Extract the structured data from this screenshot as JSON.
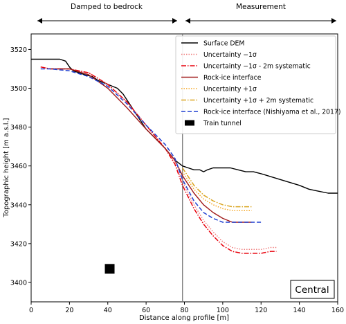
{
  "chart_data": {
    "type": "line",
    "title": "",
    "xlabel": "Distance along profile [m]",
    "ylabel": "Topographic height [m a.s.l.]",
    "xlim": [
      0,
      160
    ],
    "ylim": [
      3390,
      3528
    ],
    "xticks": [
      0,
      20,
      40,
      60,
      80,
      100,
      120,
      140,
      160
    ],
    "yticks": [
      3400,
      3420,
      3440,
      3460,
      3480,
      3500,
      3520
    ],
    "grid": false,
    "legend_position": "top-right",
    "panel_label": "Central",
    "vertical_line_x": 79,
    "top_annotations": [
      {
        "label": "Damped to bedrock",
        "x_start": 0,
        "x_end": 78
      },
      {
        "label": "Measurement",
        "x_start": 80,
        "x_end": 160
      }
    ],
    "series": [
      {
        "name": "Surface DEM",
        "color": "#000000",
        "style": "solid",
        "points": [
          [
            0,
            3515
          ],
          [
            5,
            3515
          ],
          [
            10,
            3515
          ],
          [
            15,
            3515
          ],
          [
            18,
            3514
          ],
          [
            20,
            3511
          ],
          [
            22,
            3509
          ],
          [
            25,
            3508
          ],
          [
            28,
            3507
          ],
          [
            32,
            3506
          ],
          [
            35,
            3504
          ],
          [
            40,
            3502
          ],
          [
            45,
            3500
          ],
          [
            48,
            3497
          ],
          [
            52,
            3491
          ],
          [
            56,
            3485
          ],
          [
            60,
            3479
          ],
          [
            65,
            3474
          ],
          [
            70,
            3469
          ],
          [
            75,
            3463
          ],
          [
            79,
            3460
          ],
          [
            82,
            3459
          ],
          [
            85,
            3458
          ],
          [
            88,
            3458
          ],
          [
            90,
            3457
          ],
          [
            92,
            3458
          ],
          [
            95,
            3459
          ],
          [
            100,
            3459
          ],
          [
            104,
            3459
          ],
          [
            108,
            3458
          ],
          [
            112,
            3457
          ],
          [
            116,
            3457
          ],
          [
            120,
            3456
          ],
          [
            130,
            3453
          ],
          [
            140,
            3450
          ],
          [
            145,
            3448
          ],
          [
            150,
            3447
          ],
          [
            155,
            3446
          ],
          [
            160,
            3446
          ]
        ]
      },
      {
        "name": "Uncertainty −1σ",
        "color": "#f08080",
        "style": "dotted",
        "points": [
          [
            5,
            3511
          ],
          [
            10,
            3510
          ],
          [
            20,
            3510
          ],
          [
            30,
            3508
          ],
          [
            40,
            3502
          ],
          [
            50,
            3493
          ],
          [
            60,
            3481
          ],
          [
            70,
            3469
          ],
          [
            75,
            3462
          ],
          [
            79,
            3452
          ],
          [
            85,
            3440
          ],
          [
            90,
            3432
          ],
          [
            95,
            3426
          ],
          [
            100,
            3421
          ],
          [
            105,
            3418
          ],
          [
            110,
            3417
          ],
          [
            115,
            3417
          ],
          [
            120,
            3417
          ],
          [
            125,
            3418
          ],
          [
            128,
            3418
          ]
        ]
      },
      {
        "name": "Uncertainty −1σ - 2m systematic",
        "color": "#e8000b",
        "style": "dashdot",
        "points": [
          [
            5,
            3511
          ],
          [
            10,
            3510
          ],
          [
            20,
            3510
          ],
          [
            30,
            3508
          ],
          [
            40,
            3502
          ],
          [
            50,
            3493
          ],
          [
            60,
            3481
          ],
          [
            70,
            3469
          ],
          [
            75,
            3461
          ],
          [
            79,
            3450
          ],
          [
            85,
            3438
          ],
          [
            90,
            3430
          ],
          [
            95,
            3424
          ],
          [
            100,
            3419
          ],
          [
            105,
            3416
          ],
          [
            110,
            3415
          ],
          [
            115,
            3415
          ],
          [
            120,
            3415
          ],
          [
            125,
            3416
          ],
          [
            128,
            3416
          ]
        ]
      },
      {
        "name": "Rock-ice interface",
        "color": "#a01a1a",
        "style": "solid",
        "points": [
          [
            10,
            3510
          ],
          [
            20,
            3510
          ],
          [
            30,
            3507
          ],
          [
            40,
            3500
          ],
          [
            50,
            3490
          ],
          [
            60,
            3479
          ],
          [
            70,
            3469
          ],
          [
            75,
            3463
          ],
          [
            79,
            3455
          ],
          [
            85,
            3446
          ],
          [
            90,
            3440
          ],
          [
            95,
            3436
          ],
          [
            100,
            3433
          ],
          [
            105,
            3431
          ],
          [
            110,
            3431
          ],
          [
            115,
            3431
          ]
        ]
      },
      {
        "name": "Uncertainty +1σ",
        "color": "#f5a623",
        "style": "dotted",
        "points": [
          [
            79,
            3457
          ],
          [
            85,
            3448
          ],
          [
            90,
            3443
          ],
          [
            95,
            3440
          ],
          [
            100,
            3438
          ],
          [
            105,
            3437
          ],
          [
            110,
            3437
          ],
          [
            115,
            3437
          ]
        ]
      },
      {
        "name": "Uncertainty +1σ + 2m systematic",
        "color": "#daa520",
        "style": "dashdot",
        "points": [
          [
            79,
            3459
          ],
          [
            85,
            3450
          ],
          [
            90,
            3445
          ],
          [
            95,
            3442
          ],
          [
            100,
            3440
          ],
          [
            105,
            3439
          ],
          [
            110,
            3439
          ],
          [
            115,
            3439
          ]
        ]
      },
      {
        "name": "Rock-ice interface (Nishiyama et al., 2017)",
        "color": "#1f3fd1",
        "style": "dashed",
        "points": [
          [
            5,
            3510
          ],
          [
            10,
            3510
          ],
          [
            20,
            3509
          ],
          [
            30,
            3506
          ],
          [
            40,
            3501
          ],
          [
            50,
            3492
          ],
          [
            60,
            3481
          ],
          [
            70,
            3471
          ],
          [
            75,
            3464
          ],
          [
            79,
            3453
          ],
          [
            85,
            3442
          ],
          [
            90,
            3436
          ],
          [
            95,
            3433
          ],
          [
            100,
            3431
          ],
          [
            105,
            3431
          ],
          [
            110,
            3431
          ],
          [
            120,
            3431
          ]
        ]
      },
      {
        "name": "Train tunnel",
        "color": "#000000",
        "style": "square",
        "points": [
          [
            41,
            3407
          ]
        ]
      }
    ]
  }
}
